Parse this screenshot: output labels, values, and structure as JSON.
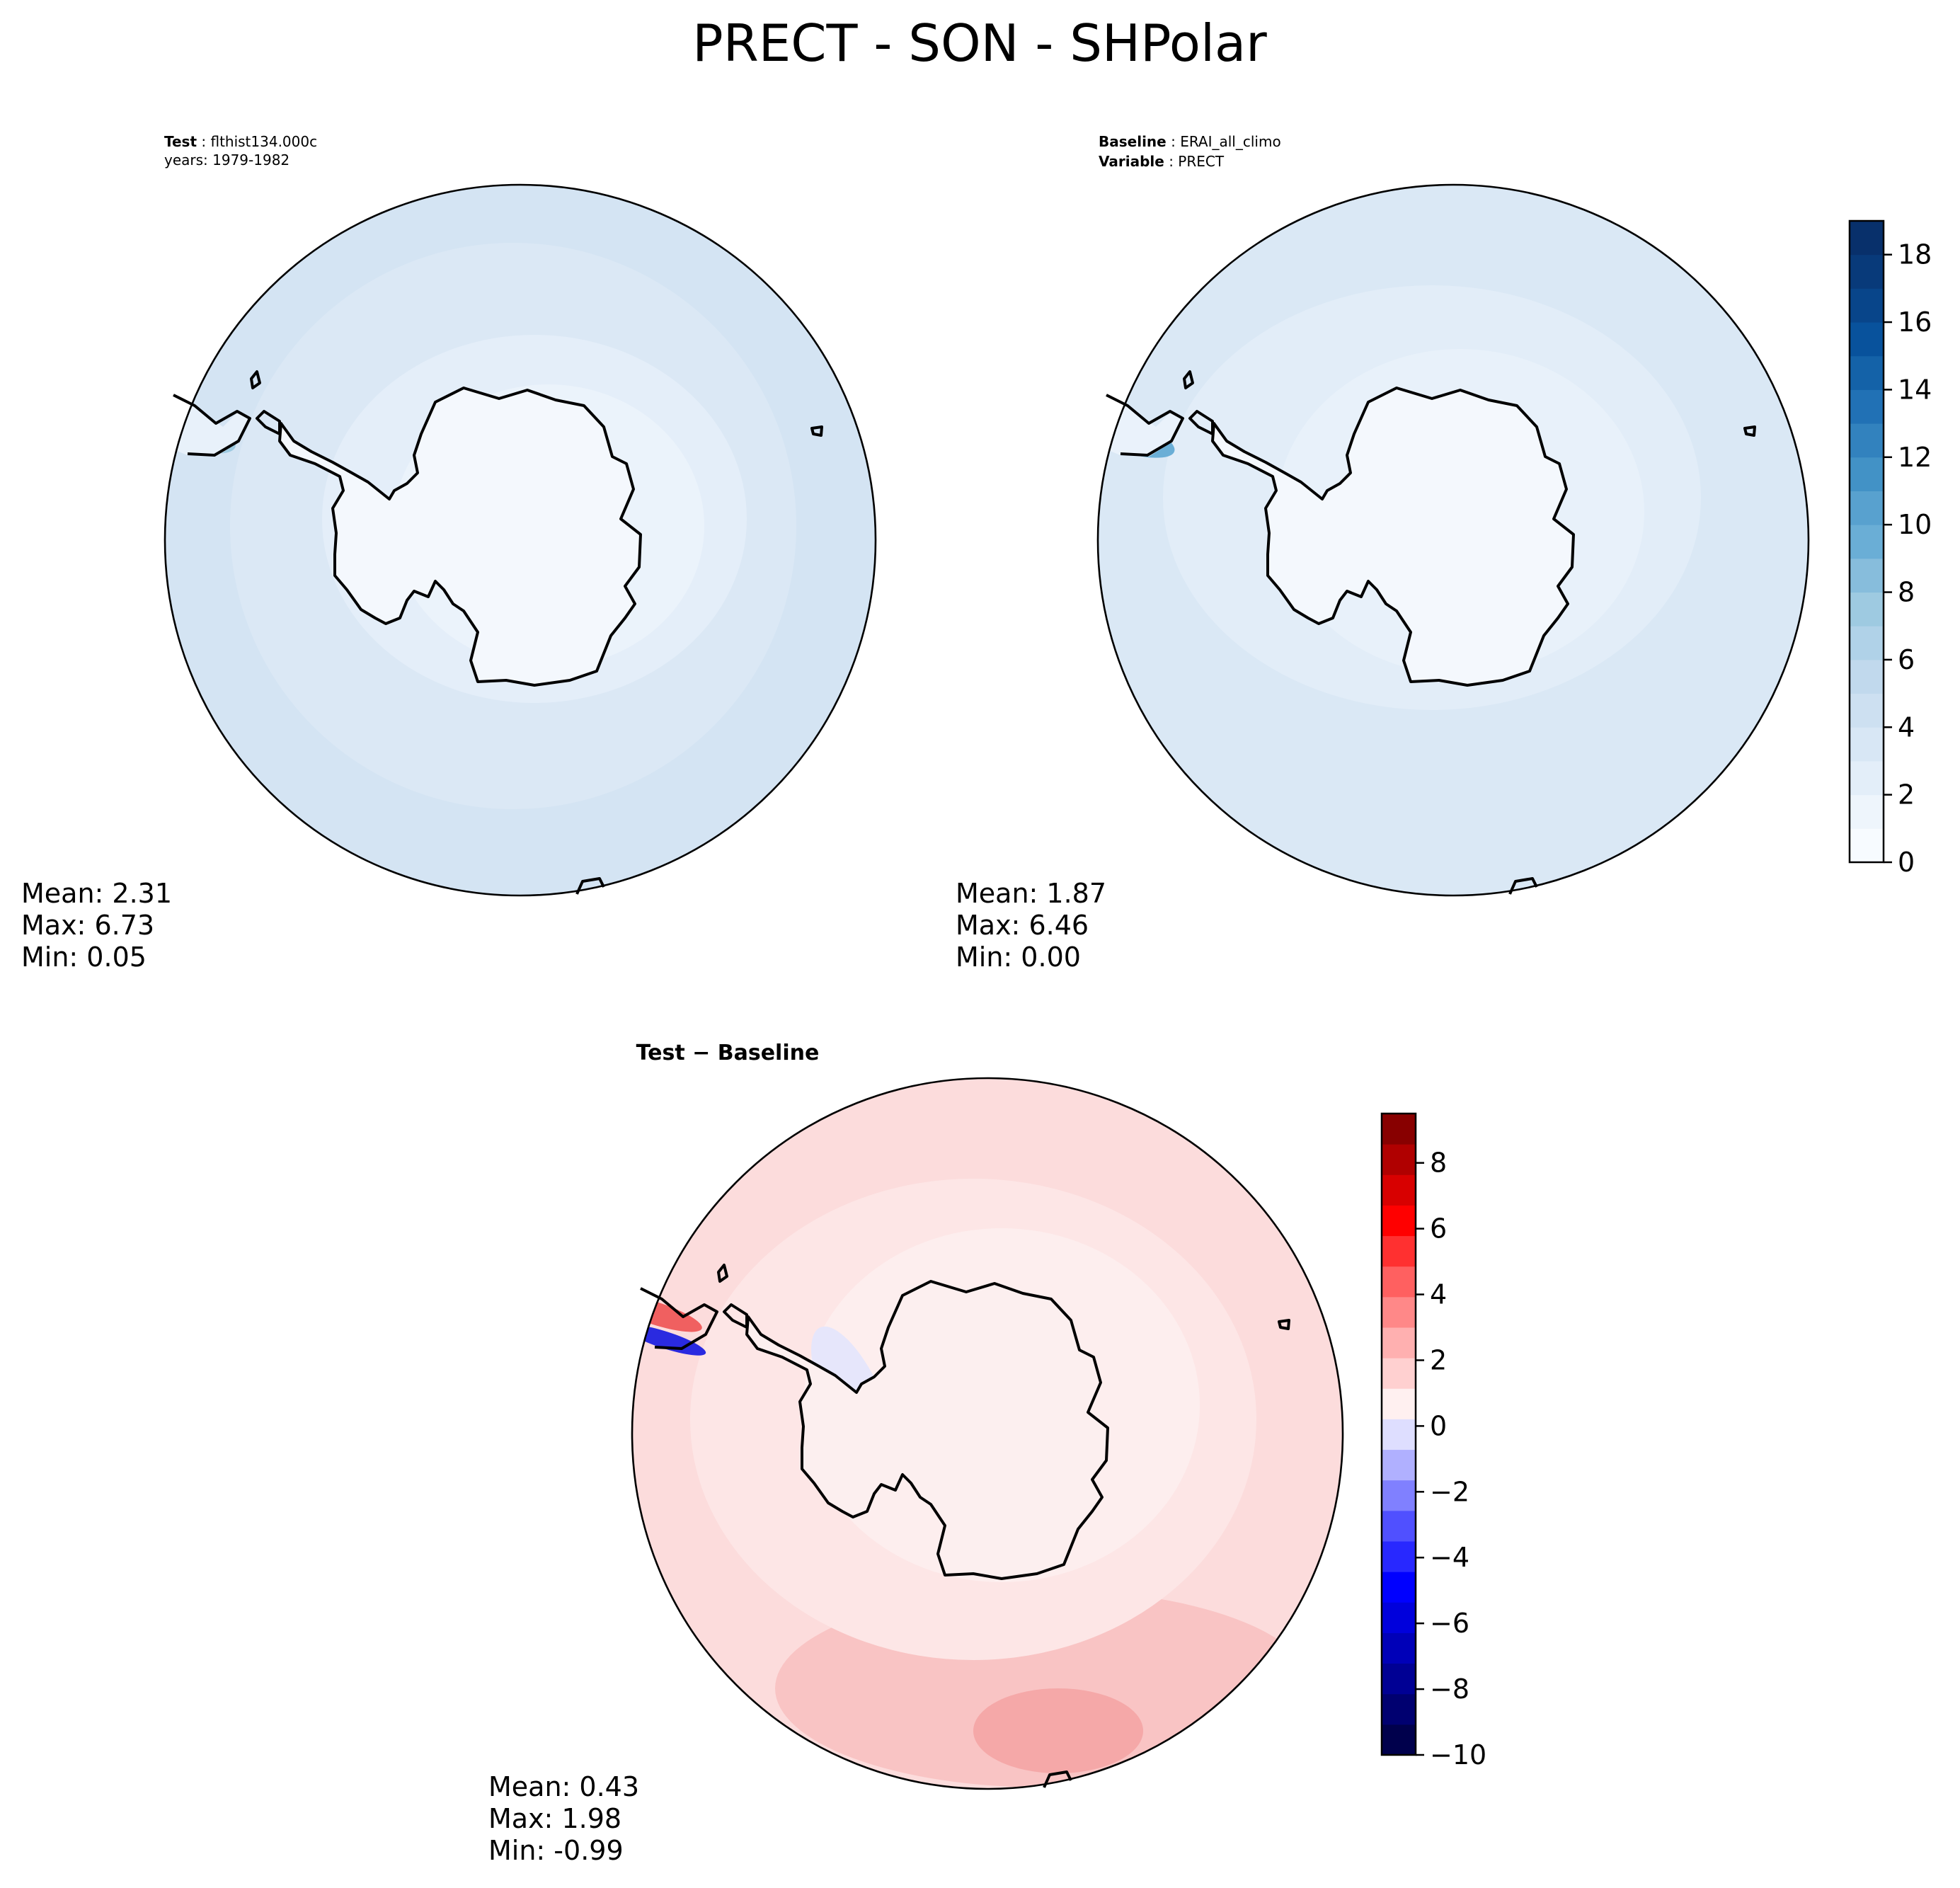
{
  "figure": {
    "title": "PRECT - SON - SHPolar"
  },
  "panels": {
    "test": {
      "label_bold": "Test",
      "label_value": "flthist134.000c",
      "line2": "years: 1979-1982",
      "mean": "Mean:  2.31",
      "max": "Max:  6.73",
      "min": "Min:  0.05"
    },
    "baseline": {
      "label_bold": "Baseline",
      "label_value": "ERAI_all_climo",
      "line2_bold": "Variable",
      "line2_value": "PRECT",
      "mean": "Mean:  1.87",
      "max": "Max:  6.46",
      "min": "Min:  0.00"
    },
    "diff": {
      "label_a": "Test",
      "label_sep": "−",
      "label_b": "Baseline",
      "mean": "Mean:  0.43",
      "max": "Max:  1.98",
      "min": "Min: -0.99"
    }
  },
  "colors": {
    "ocean_test": "#d4e4f3",
    "ocean_base": "#dae8f5",
    "ocean_diff": "#fde6e6",
    "land_blue": "#f4f8fd",
    "land_diff": "#fcefef",
    "coast": "#000000"
  },
  "chart_data": [
    {
      "type": "heatmap",
      "name": "test",
      "projection": "south-polar-stereographic",
      "stats": {
        "mean": 2.31,
        "max": 6.73,
        "min": 0.05
      },
      "colormap": "Blues",
      "levels_range": [
        0,
        19
      ]
    },
    {
      "type": "heatmap",
      "name": "baseline",
      "projection": "south-polar-stereographic",
      "stats": {
        "mean": 1.87,
        "max": 6.46,
        "min": 0.0
      },
      "colormap": "Blues",
      "colorbar": {
        "range": [
          0,
          19
        ],
        "ticks": [
          0,
          2,
          4,
          6,
          8,
          10,
          12,
          14,
          16,
          18
        ],
        "tick_labels": [
          "0",
          "2",
          "4",
          "6",
          "8",
          "10",
          "12",
          "14",
          "16",
          "18"
        ],
        "colors": [
          "#f7fbff",
          "#eef5fc",
          "#e3eef9",
          "#d8e7f5",
          "#cde0f1",
          "#c1d9ed",
          "#b0d2e8",
          "#9ecae1",
          "#87bddc",
          "#6aaed6",
          "#58a1cf",
          "#4292c6",
          "#3282be",
          "#2171b5",
          "#1462a8",
          "#08529c",
          "#08458a",
          "#083a7a",
          "#08306b"
        ]
      }
    },
    {
      "type": "heatmap",
      "name": "diff",
      "projection": "south-polar-stereographic",
      "stats": {
        "mean": 0.43,
        "max": 1.98,
        "min": -0.99
      },
      "colormap": "seismic",
      "colorbar": {
        "range": [
          -10,
          9.5
        ],
        "ticks": [
          -10,
          -8,
          -6,
          -4,
          -2,
          0,
          2,
          4,
          6,
          8
        ],
        "tick_labels": [
          "−10",
          "−8",
          "−6",
          "−4",
          "−2",
          "0",
          "2",
          "4",
          "6",
          "8"
        ],
        "colors": [
          "#00004c",
          "#000070",
          "#000094",
          "#0000b8",
          "#0000dc",
          "#0000ff",
          "#2828ff",
          "#5050ff",
          "#8080ff",
          "#b0b0ff",
          "#dedeff",
          "#fff0f0",
          "#ffd0d0",
          "#ffb0b0",
          "#ff8888",
          "#ff6060",
          "#ff3030",
          "#ff0000",
          "#d80000",
          "#b00000",
          "#880000"
        ]
      }
    }
  ]
}
